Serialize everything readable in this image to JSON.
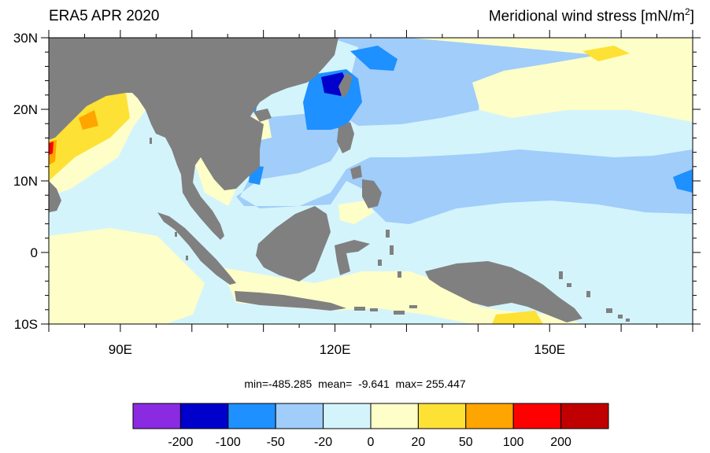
{
  "header": {
    "left_title": "ERA5 APR 2020",
    "right_title_main": "Meridional wind stress [mN/m",
    "right_title_sup": "2",
    "right_title_close": "]"
  },
  "map": {
    "lat_range": [
      -10,
      30
    ],
    "lon_range": [
      80,
      170
    ],
    "lat_tick_labels": [
      {
        "value": 30,
        "label": "30N"
      },
      {
        "value": 20,
        "label": "20N"
      },
      {
        "value": 10,
        "label": "10N"
      },
      {
        "value": 0,
        "label": "0"
      },
      {
        "value": -10,
        "label": "10S"
      }
    ],
    "lon_tick_labels": [
      {
        "value": 90,
        "label": "90E"
      },
      {
        "value": 120,
        "label": "120E"
      },
      {
        "value": 150,
        "label": "150E"
      }
    ],
    "land_color": "#808080",
    "background_color": "#d4f4fc"
  },
  "stats": {
    "text": "min=-485.285  mean=  -9.641  max= 255.447"
  },
  "colorbar": {
    "colors": [
      "#8a2be2",
      "#0000cd",
      "#1e90ff",
      "#a0cdfa",
      "#d4f4fc",
      "#fefec8",
      "#fee135",
      "#fea500",
      "#fe0000",
      "#c00000"
    ],
    "labels": [
      "-200",
      "-100",
      "-50",
      "-20",
      "0",
      "20",
      "50",
      "100",
      "200"
    ]
  }
}
